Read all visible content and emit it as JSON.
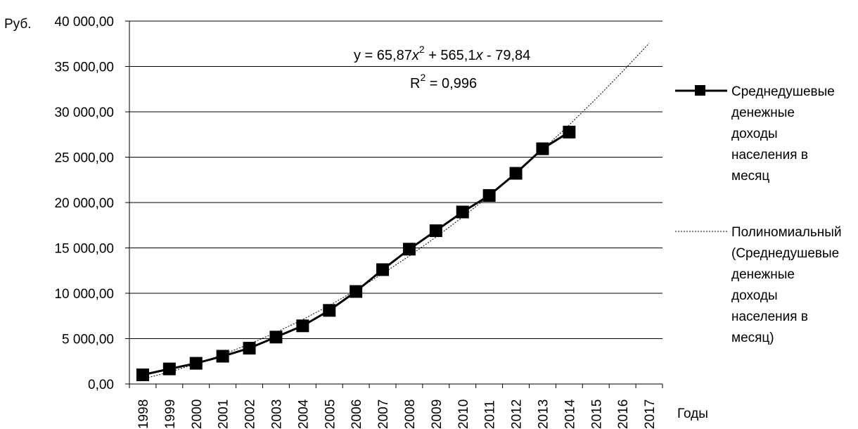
{
  "chart_data": {
    "type": "line",
    "ylabel": "Руб.",
    "xlabel": "Годы",
    "ylim": [
      0,
      40000
    ],
    "y_ticks": [
      "0,00",
      "5 000,00",
      "10 000,00",
      "15 000,00",
      "20 000,00",
      "25 000,00",
      "30 000,00",
      "35 000,00",
      "40 000,00"
    ],
    "categories": [
      "1998",
      "1999",
      "2000",
      "2001",
      "2002",
      "2003",
      "2004",
      "2005",
      "2006",
      "2007",
      "2008",
      "2009",
      "2010",
      "2011",
      "2012",
      "2013",
      "2014",
      "2015",
      "2016",
      "2017"
    ],
    "grid": true,
    "legend_position": "right",
    "series": [
      {
        "name": "Среднедушевые денежные доходы населения в месяц",
        "legend_lines": [
          "Среднедушевые",
          "денежные",
          "доходы",
          "населения в",
          "месяц"
        ],
        "marker": "square",
        "color": "#000000",
        "values": [
          1010,
          1660,
          2281,
          3062,
          3947,
          5170,
          6410,
          8112,
          10196,
          12603,
          14864,
          16895,
          18958,
          20780,
          23221,
          25928,
          27766,
          null,
          null,
          null
        ]
      },
      {
        "name": "Полиномиальный (Среднедушевые денежные доходы населения в месяц)",
        "legend_lines": [
          "Полиномиальный",
          "(Среднедушевые",
          "денежные",
          "доходы",
          "населения в",
          "месяц)"
        ],
        "style": "dotted-trendline",
        "color": "#000000",
        "values": [
          551,
          1314,
          2209,
          3235,
          4393,
          5683,
          7104,
          8657,
          10342,
          12158,
          14105,
          16185,
          18396,
          20738,
          23212,
          25818,
          28556,
          31425,
          34425,
          37557
        ]
      }
    ],
    "annotations": {
      "equation": {
        "y": "y = 65,87",
        "x": "x",
        "exp": "2",
        "rest": " + 565,1",
        "x2": "x",
        "tail": " - 79,84"
      },
      "r2": {
        "label": "R",
        "exp": "2",
        "value": " = 0,996"
      }
    }
  }
}
